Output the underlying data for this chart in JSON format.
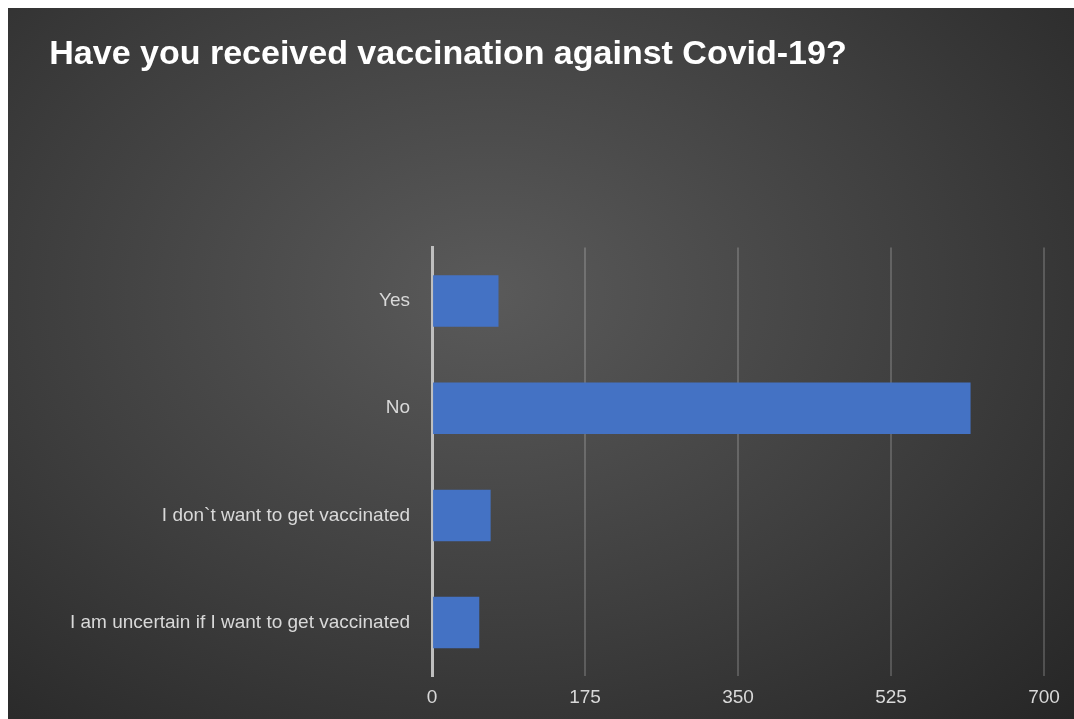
{
  "chart_data": {
    "type": "bar",
    "orientation": "horizontal",
    "title": "Have you received vaccination against Covid-19?",
    "categories": [
      "Yes",
      "No",
      "I don`t want to get vaccinated",
      "I am uncertain if I want to get vaccinated"
    ],
    "values": [
      76,
      616,
      67,
      54
    ],
    "color": "#4472c4",
    "xlim": [
      0,
      700
    ],
    "xticks": [
      0,
      175,
      350,
      525,
      700
    ],
    "grid": "x",
    "legend": false
  }
}
